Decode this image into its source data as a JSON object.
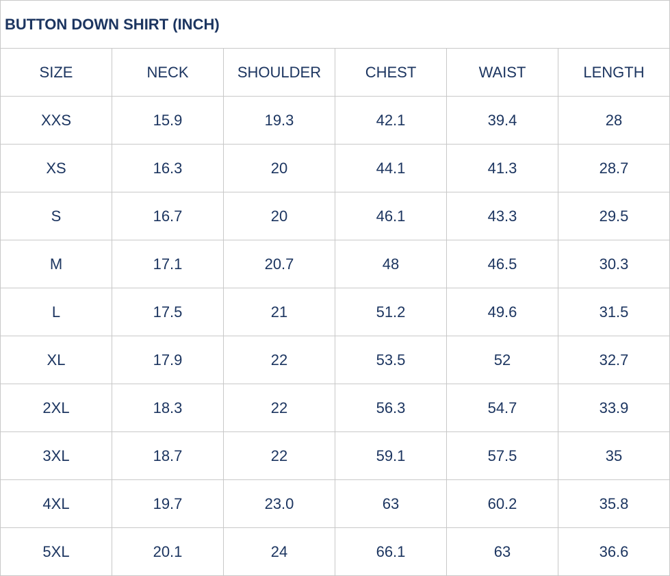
{
  "title": "BUTTON DOWN SHIRT (INCH)",
  "headers": [
    "SIZE",
    "NECK",
    "SHOULDER",
    "CHEST",
    "WAIST",
    "LENGTH"
  ],
  "rows": [
    [
      "XXS",
      "15.9",
      "19.3",
      "42.1",
      "39.4",
      "28"
    ],
    [
      "XS",
      "16.3",
      "20",
      "44.1",
      "41.3",
      "28.7"
    ],
    [
      "S",
      "16.7",
      "20",
      "46.1",
      "43.3",
      "29.5"
    ],
    [
      "M",
      "17.1",
      "20.7",
      "48",
      "46.5",
      "30.3"
    ],
    [
      "L",
      "17.5",
      "21",
      "51.2",
      "49.6",
      "31.5"
    ],
    [
      "XL",
      "17.9",
      "22",
      "53.5",
      "52",
      "32.7"
    ],
    [
      "2XL",
      "18.3",
      "22",
      "56.3",
      "54.7",
      "33.9"
    ],
    [
      "3XL",
      "18.7",
      "22",
      "59.1",
      "57.5",
      "35"
    ],
    [
      "4XL",
      "19.7",
      "23.0",
      "63",
      "60.2",
      "35.8"
    ],
    [
      "5XL",
      "20.1",
      "24",
      "66.1",
      "63",
      "36.6"
    ]
  ],
  "colors": {
    "text": "#1c3560",
    "border": "#c8c8c8"
  }
}
